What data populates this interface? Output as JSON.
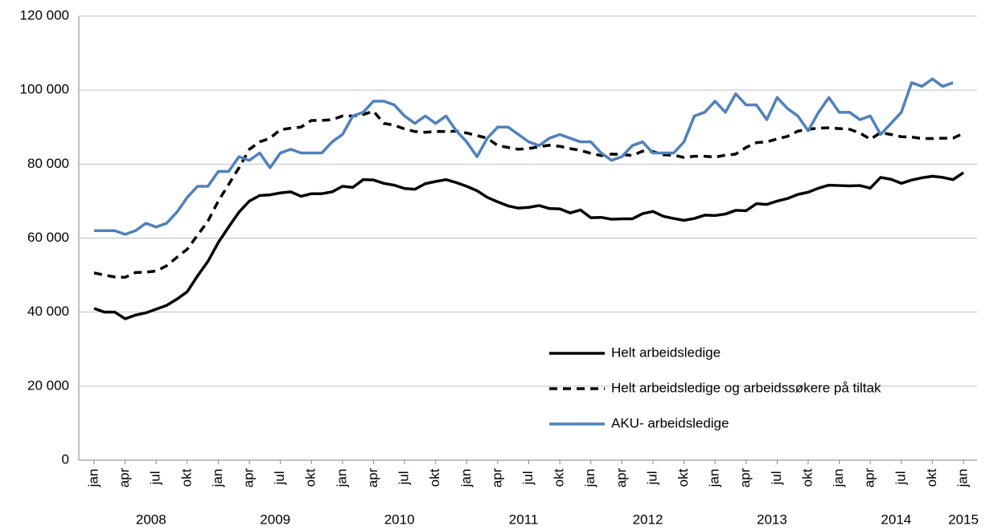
{
  "chart_data": {
    "type": "line",
    "categories": [
      "jan",
      null,
      null,
      "apr",
      null,
      null,
      "jul",
      null,
      null,
      "okt",
      null,
      null,
      "jan",
      null,
      null,
      "apr",
      null,
      null,
      "jul",
      null,
      null,
      "okt",
      null,
      null,
      "jan",
      null,
      null,
      "apr",
      null,
      null,
      "jul",
      null,
      null,
      "okt",
      null,
      null,
      "jan",
      null,
      null,
      "apr",
      null,
      null,
      "jul",
      null,
      null,
      "okt",
      null,
      null,
      "jan",
      null,
      null,
      "apr",
      null,
      null,
      "jul",
      null,
      null,
      "okt",
      null,
      null,
      "jan",
      null,
      null,
      "apr",
      null,
      null,
      "jul",
      null,
      null,
      "okt",
      null,
      null,
      "jan",
      null,
      null,
      "apr",
      null,
      null,
      "jul",
      null,
      null,
      "okt",
      null,
      null,
      "jan"
    ],
    "year_groups": [
      "2008",
      "2009",
      "2010",
      "2011",
      "2012",
      "2013",
      "2014",
      "2015"
    ],
    "ylim": [
      0,
      120000
    ],
    "yticks": [
      0,
      {
        "value": 20000,
        "label": "20 000"
      },
      {
        "value": 40000,
        "label": "40 000"
      },
      {
        "value": 60000,
        "label": "60 000"
      },
      {
        "value": 80000,
        "label": "80 000"
      },
      {
        "value": 100000,
        "label": "100 000"
      },
      {
        "value": 120000,
        "label": "120 000"
      }
    ],
    "grid": true,
    "series": [
      {
        "name": "Helt arbeidsledige",
        "color": "#000000",
        "dash": false,
        "values": [
          41000,
          40000,
          40000,
          38200,
          39200,
          39800,
          40800,
          41800,
          43500,
          45500,
          49800,
          53700,
          58800,
          63000,
          67000,
          70000,
          71500,
          71700,
          72200,
          72500,
          71300,
          72000,
          72000,
          72500,
          74000,
          73700,
          75800,
          75700,
          74800,
          74300,
          73400,
          73200,
          74700,
          75300,
          75800,
          75000,
          74000,
          72800,
          71000,
          69800,
          68700,
          68100,
          68300,
          68800,
          68000,
          67900,
          66800,
          67600,
          65500,
          65600,
          65100,
          65200,
          65200,
          66600,
          67200,
          65900,
          65300,
          64800,
          65300,
          66200,
          66100,
          66500,
          67500,
          67400,
          69300,
          69100,
          70000,
          70700,
          71800,
          72400,
          73500,
          74300,
          74200,
          74100,
          74200,
          73500,
          76400,
          75900,
          74800,
          75700,
          76300,
          76700,
          76400,
          75800,
          77700
        ]
      },
      {
        "name": "Helt arbeidsledige og arbeidssøkere på tiltak",
        "color": "#000000",
        "dash": true,
        "values": [
          50600,
          50000,
          49500,
          49400,
          50700,
          50800,
          51100,
          52500,
          54800,
          57000,
          60800,
          64600,
          70000,
          74500,
          79000,
          84000,
          86000,
          87000,
          89300,
          89700,
          90000,
          91800,
          91800,
          92000,
          93000,
          93000,
          93400,
          94300,
          91000,
          90500,
          89500,
          88800,
          88600,
          88800,
          88800,
          88900,
          88400,
          87700,
          87000,
          85000,
          84500,
          84000,
          84200,
          84700,
          85100,
          84800,
          84200,
          83700,
          82900,
          82300,
          82700,
          82600,
          82300,
          83500,
          83400,
          82500,
          82400,
          81800,
          82100,
          82100,
          81900,
          82400,
          82700,
          84500,
          85800,
          86000,
          86800,
          87500,
          88900,
          89400,
          89700,
          89800,
          89600,
          89400,
          88400,
          86700,
          88500,
          88000,
          87400,
          87300,
          86900,
          86900,
          87000,
          87000,
          88300
        ]
      },
      {
        "name": "AKU- arbeidsledige",
        "color": "#4f81bd",
        "dash": false,
        "values": [
          62000,
          62000,
          62000,
          61000,
          62000,
          64000,
          63000,
          64000,
          67000,
          71000,
          74000,
          74000,
          78000,
          78000,
          82000,
          81000,
          83000,
          79000,
          83000,
          84000,
          83000,
          83000,
          83000,
          86000,
          88000,
          93000,
          94000,
          97000,
          97000,
          96000,
          93000,
          91000,
          93000,
          91000,
          93000,
          89000,
          86000,
          82000,
          87000,
          90000,
          90000,
          88000,
          86000,
          85000,
          87000,
          88000,
          87000,
          86000,
          86000,
          83000,
          81000,
          82000,
          85000,
          86000,
          83000,
          83000,
          83000,
          86000,
          93000,
          94000,
          97000,
          94000,
          99000,
          96000,
          96000,
          92000,
          98000,
          95000,
          93000,
          89000,
          94000,
          98000,
          94000,
          94000,
          92000,
          93000,
          88000,
          91000,
          94000,
          102000,
          101000,
          103000,
          101000,
          102000,
          null
        ]
      }
    ]
  }
}
